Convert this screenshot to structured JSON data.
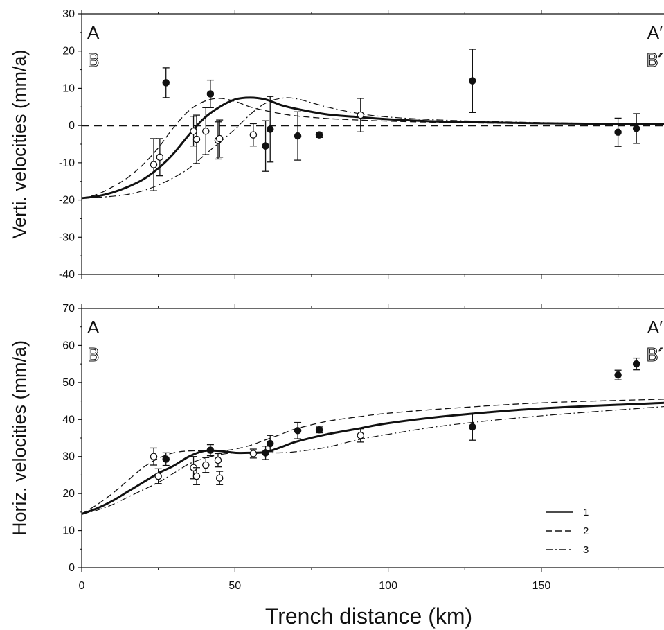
{
  "chart_data": [
    {
      "type": "scatter",
      "ylabel": "Verti. velocities (mm/a)",
      "xlim": [
        0,
        190
      ],
      "ylim": [
        -40,
        30
      ],
      "yticks": [
        -40,
        -30,
        -20,
        -10,
        0,
        10,
        20,
        30
      ],
      "corner_labels": {
        "top_left": "A",
        "top_left_2": "B",
        "top_right": "A′",
        "top_right_2": "B′"
      },
      "reference_line": {
        "y": 0,
        "style": "dashed"
      },
      "model_curves": [
        {
          "name": "1",
          "style": "solid",
          "x": [
            0,
            5,
            10,
            15,
            20,
            25,
            30,
            35,
            40,
            45,
            50,
            55,
            60,
            65,
            70,
            80,
            90,
            100,
            120,
            150,
            190
          ],
          "y": [
            -19.5,
            -19,
            -18,
            -16.5,
            -14.5,
            -11.5,
            -7.5,
            -2.5,
            2,
            5,
            7,
            7.5,
            7,
            5.5,
            4.5,
            3,
            2.3,
            1.7,
            1,
            0.6,
            0.3
          ]
        },
        {
          "name": "2",
          "style": "dashed",
          "x": [
            0,
            5,
            10,
            15,
            20,
            25,
            30,
            35,
            40,
            45,
            50,
            55,
            60,
            65,
            70,
            80,
            90,
            100,
            120,
            150,
            190
          ],
          "y": [
            -19.5,
            -18.5,
            -16.5,
            -14,
            -10.5,
            -6,
            -0.5,
            4,
            6.5,
            7.3,
            6.5,
            5,
            4,
            3.2,
            2.6,
            1.9,
            1.5,
            1.2,
            0.8,
            0.5,
            0.3
          ]
        },
        {
          "name": "3",
          "style": "dashdot",
          "x": [
            0,
            5,
            10,
            15,
            20,
            25,
            30,
            35,
            40,
            45,
            50,
            55,
            60,
            65,
            70,
            80,
            90,
            100,
            120,
            150,
            190
          ],
          "y": [
            -19.5,
            -19.3,
            -19,
            -18.5,
            -17.5,
            -16,
            -14,
            -11.5,
            -8,
            -4.5,
            -1,
            3,
            6,
            7.3,
            7.2,
            5,
            3.3,
            2.3,
            1.4,
            0.8,
            0.4
          ]
        }
      ],
      "observations": [
        {
          "x": 23.5,
          "y": -10.5,
          "err": 7,
          "type": "open"
        },
        {
          "x": 25.5,
          "y": -8.5,
          "err": 5,
          "type": "open"
        },
        {
          "x": 27.5,
          "y": 11.5,
          "err": 4,
          "type": "filled"
        },
        {
          "x": 36.5,
          "y": -1.5,
          "err": 4,
          "type": "open"
        },
        {
          "x": 37.5,
          "y": -3.7,
          "err": 6.5,
          "type": "open"
        },
        {
          "x": 40.5,
          "y": -1.5,
          "err": 6.3,
          "type": "open"
        },
        {
          "x": 42,
          "y": 8.5,
          "err": 3.7,
          "type": "filled"
        },
        {
          "x": 44.5,
          "y": -4,
          "err": 5,
          "type": "open"
        },
        {
          "x": 45,
          "y": -3.5,
          "err": 5,
          "type": "open"
        },
        {
          "x": 56,
          "y": -2.5,
          "err": 3,
          "type": "open"
        },
        {
          "x": 60,
          "y": -5.5,
          "err": 6.8,
          "type": "filled"
        },
        {
          "x": 61.5,
          "y": -1,
          "err": 8.8,
          "type": "filled"
        },
        {
          "x": 70.5,
          "y": -2.8,
          "err": 6.5,
          "type": "filled"
        },
        {
          "x": 77.5,
          "y": -2.5,
          "err": 0.7,
          "type": "filled"
        },
        {
          "x": 91,
          "y": 2.8,
          "err": 4.5,
          "type": "open"
        },
        {
          "x": 127.5,
          "y": 12,
          "err": 8.5,
          "type": "filled"
        },
        {
          "x": 175,
          "y": -1.8,
          "err": 3.8,
          "type": "filled"
        },
        {
          "x": 181,
          "y": -0.8,
          "err": 4,
          "type": "filled"
        }
      ]
    },
    {
      "type": "scatter",
      "ylabel": "Horiz. velocities (mm/a)",
      "xlabel": "Trench distance (km)",
      "xlim": [
        0,
        190
      ],
      "ylim": [
        0,
        70
      ],
      "xticks": [
        0,
        50,
        100,
        150
      ],
      "yticks": [
        0,
        10,
        20,
        30,
        40,
        50,
        60,
        70
      ],
      "corner_labels": {
        "top_left": "A",
        "top_left_2": "B",
        "top_right": "A′",
        "top_right_2": "B′"
      },
      "legend": {
        "position": "bottom-right",
        "entries": [
          {
            "label": "1",
            "style": "solid"
          },
          {
            "label": "2",
            "style": "dashed"
          },
          {
            "label": "3",
            "style": "dashdot"
          }
        ]
      },
      "model_curves": [
        {
          "name": "1",
          "style": "solid",
          "x": [
            0,
            5,
            10,
            15,
            20,
            25,
            30,
            35,
            40,
            45,
            50,
            55,
            60,
            65,
            70,
            80,
            90,
            100,
            120,
            150,
            190
          ],
          "y": [
            14.5,
            16,
            18,
            20.5,
            23,
            25.5,
            27.5,
            30,
            31.5,
            31.5,
            31,
            31,
            31.2,
            32.5,
            34,
            36,
            37.5,
            39,
            41,
            43,
            44.5
          ]
        },
        {
          "name": "2",
          "style": "dashed",
          "x": [
            0,
            5,
            10,
            15,
            20,
            25,
            30,
            35,
            40,
            45,
            50,
            55,
            60,
            65,
            70,
            80,
            90,
            100,
            120,
            150,
            190
          ],
          "y": [
            14.5,
            17,
            20,
            23.5,
            27,
            29.5,
            31,
            31.5,
            31.5,
            31.5,
            32,
            33,
            34.5,
            36,
            37.5,
            39.5,
            40.7,
            41.7,
            43,
            44.5,
            45.5
          ]
        },
        {
          "name": "3",
          "style": "dashdot",
          "x": [
            0,
            5,
            10,
            15,
            20,
            25,
            30,
            35,
            40,
            45,
            50,
            55,
            60,
            65,
            70,
            80,
            90,
            100,
            120,
            150,
            190
          ],
          "y": [
            14.5,
            15.5,
            17,
            19,
            21,
            23,
            25.5,
            28,
            29.5,
            30.5,
            31,
            31,
            31,
            31,
            31.3,
            32.5,
            34.5,
            36,
            38.5,
            41,
            43.5
          ]
        }
      ],
      "observations": [
        {
          "x": 23.5,
          "y": 30,
          "err": 2.3,
          "type": "open"
        },
        {
          "x": 25,
          "y": 24.7,
          "err": 2,
          "type": "open"
        },
        {
          "x": 27.5,
          "y": 29.3,
          "err": 1.7,
          "type": "filled"
        },
        {
          "x": 36.5,
          "y": 27,
          "err": 3,
          "type": "open"
        },
        {
          "x": 37.5,
          "y": 24.7,
          "err": 2.3,
          "type": "open"
        },
        {
          "x": 40.5,
          "y": 27.7,
          "err": 2,
          "type": "open"
        },
        {
          "x": 42,
          "y": 31.7,
          "err": 1.5,
          "type": "filled"
        },
        {
          "x": 44.5,
          "y": 29,
          "err": 1.8,
          "type": "open"
        },
        {
          "x": 45,
          "y": 24.2,
          "err": 1.8,
          "type": "open"
        },
        {
          "x": 56,
          "y": 30.8,
          "err": 1.2,
          "type": "open"
        },
        {
          "x": 60,
          "y": 31,
          "err": 1.8,
          "type": "filled"
        },
        {
          "x": 61.5,
          "y": 33.5,
          "err": 2.2,
          "type": "filled"
        },
        {
          "x": 70.5,
          "y": 37,
          "err": 2.2,
          "type": "filled"
        },
        {
          "x": 77.5,
          "y": 37.2,
          "err": 0.8,
          "type": "filled"
        },
        {
          "x": 91,
          "y": 35.7,
          "err": 1.8,
          "type": "open"
        },
        {
          "x": 127.5,
          "y": 38,
          "err": 3.6,
          "type": "filled"
        },
        {
          "x": 175,
          "y": 52,
          "err": 1.3,
          "type": "filled"
        },
        {
          "x": 181,
          "y": 55,
          "err": 1.6,
          "type": "filled"
        }
      ]
    }
  ]
}
